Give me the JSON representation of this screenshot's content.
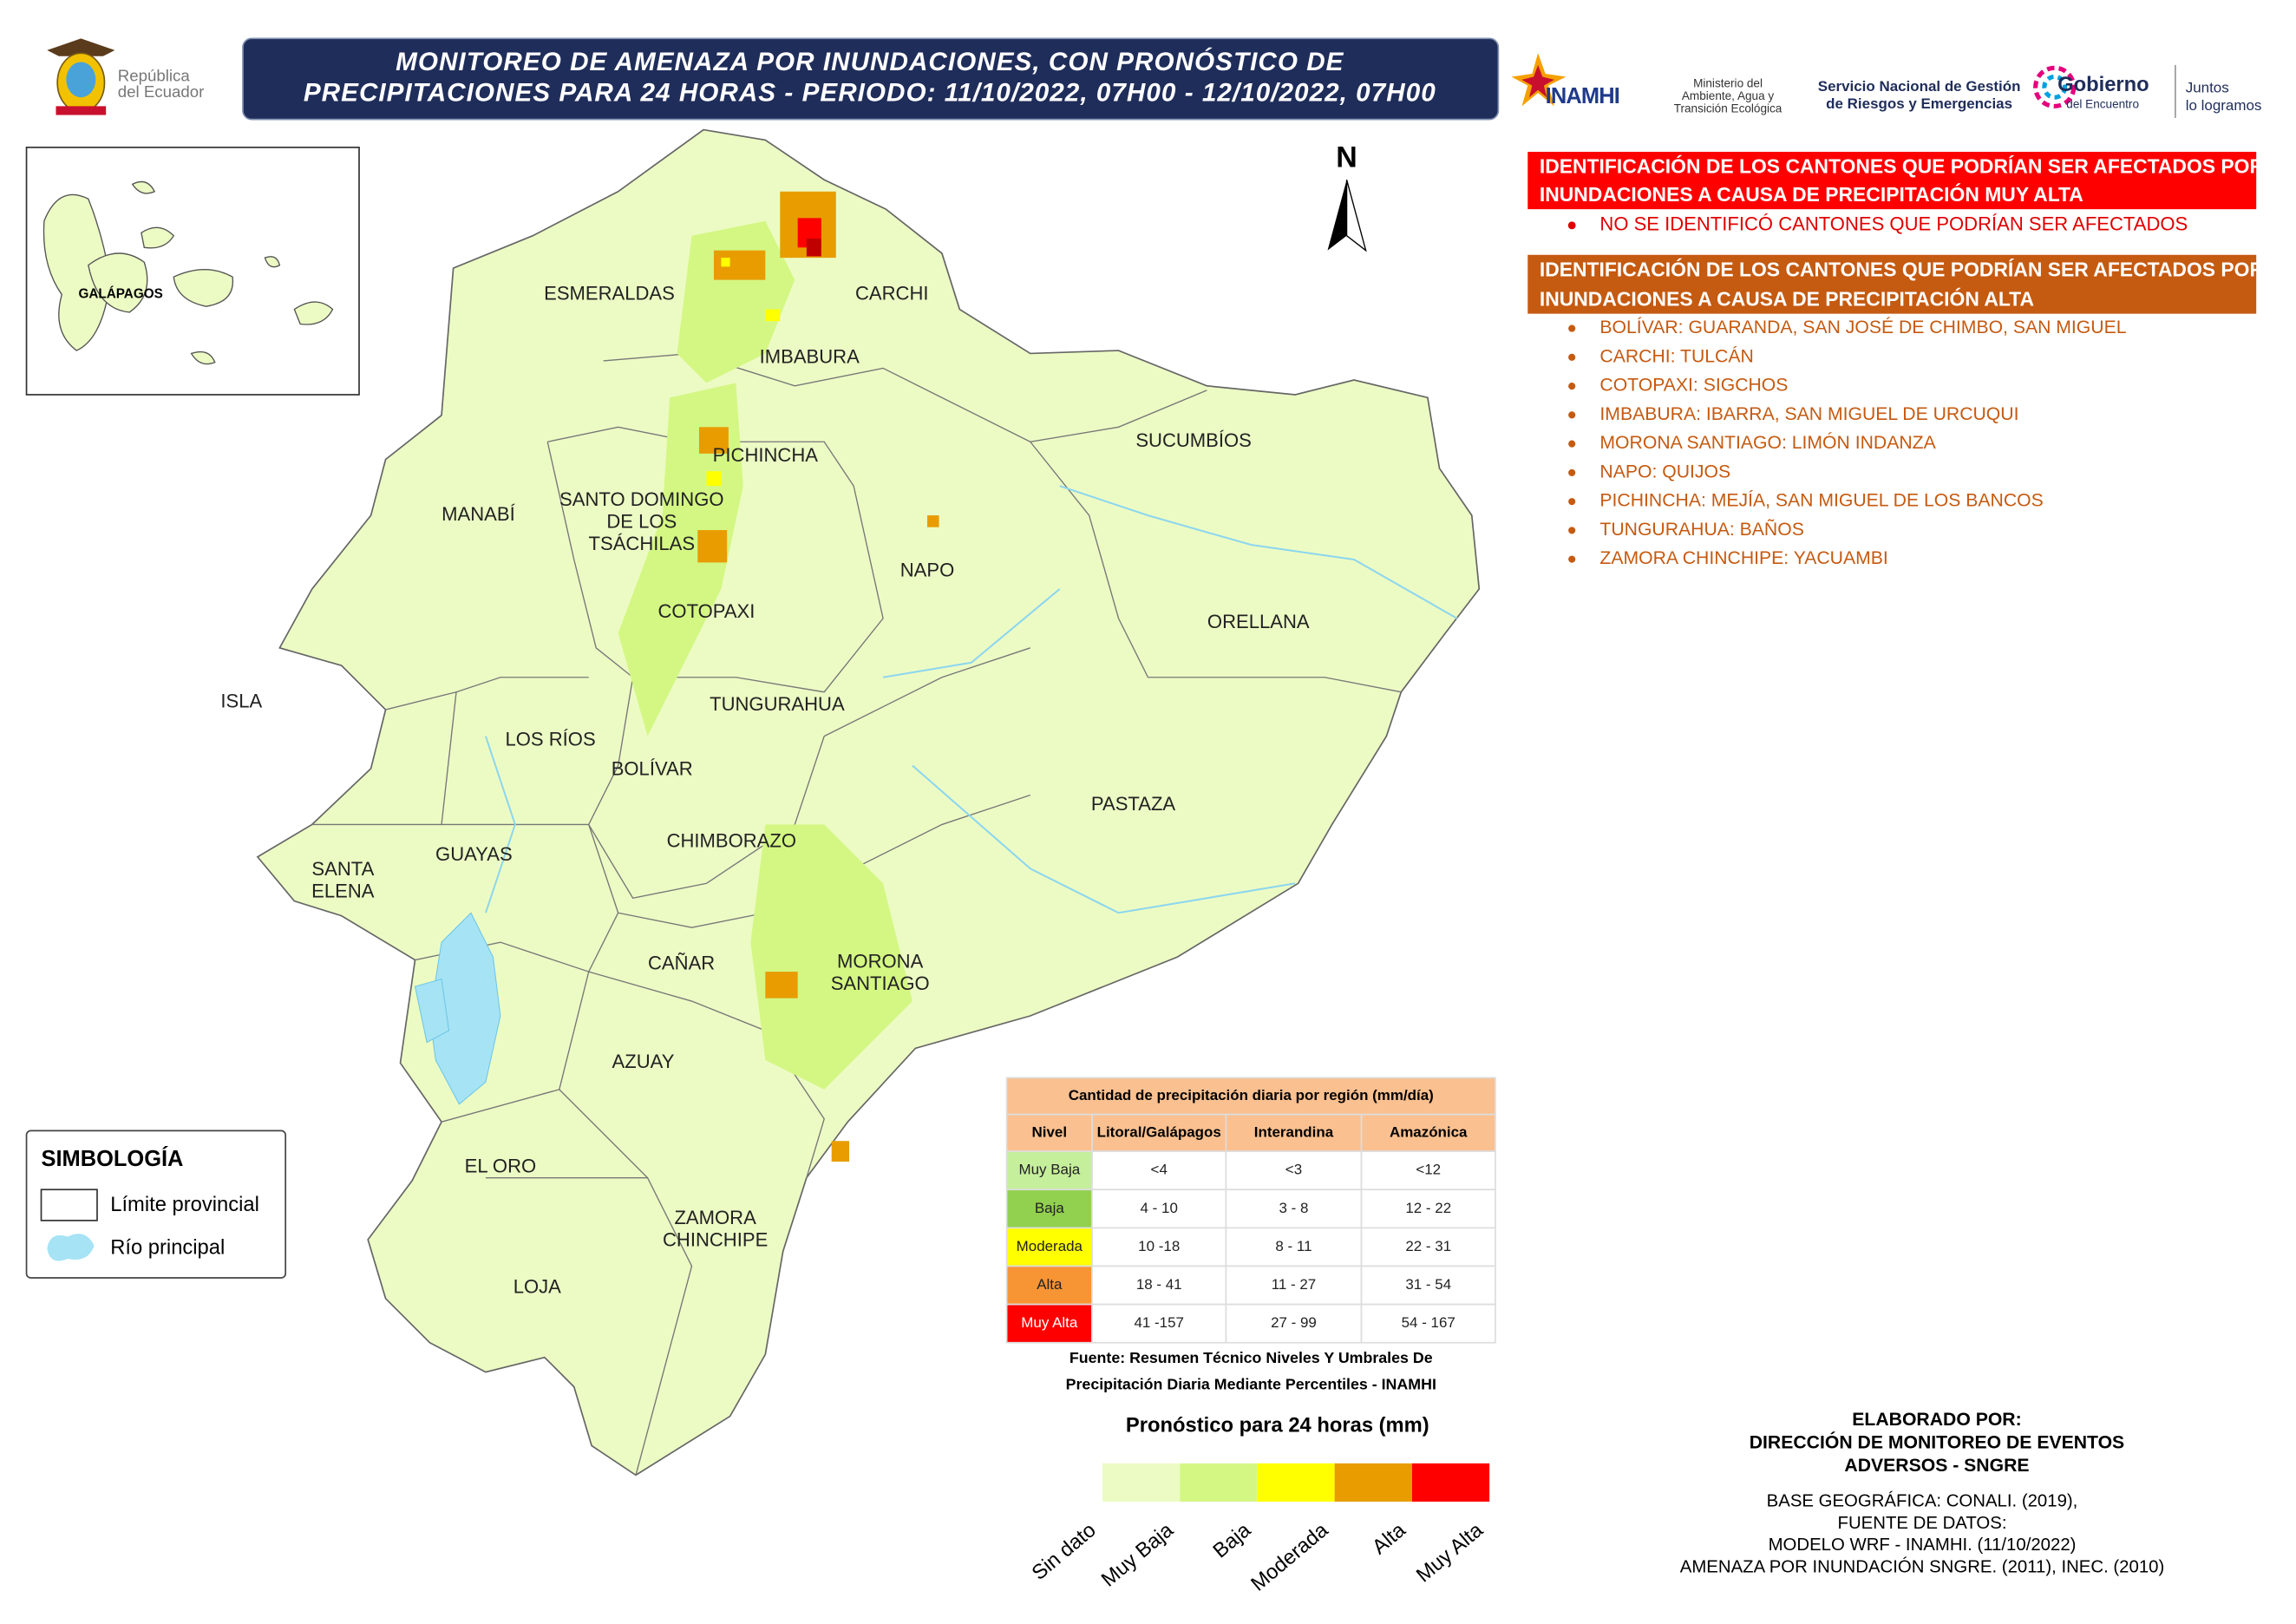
{
  "header": {
    "title": [
      "MONITOREO DE AMENAZA POR INUNDACIONES, CON PRONÓSTICO DE",
      "PRECIPITACIONES  PARA 24  HORAS - PERIODO: 11/10/2022, 07H00 - 12/10/2022, 07H00"
    ]
  },
  "logos": {
    "republic": [
      "República",
      "del Ecuador"
    ],
    "inamhi": "INAMHI",
    "ministry": [
      "Ministerio del",
      "Ambiente, Agua y",
      "Transición Ecológica"
    ],
    "sngre": [
      "Servicio Nacional de Gestión",
      "de Riesgos y Emergencias"
    ],
    "gobierno": [
      "Gobierno",
      "del Encuentro"
    ],
    "juntos": [
      "Juntos",
      "lo logramos"
    ]
  },
  "map": {
    "north": "N",
    "inset": "GALÁPAGOS",
    "provinces": [
      [
        "ESMERALDAS"
      ],
      [
        "CARCHI"
      ],
      [
        "IMBABURA"
      ],
      [
        "PICHINCHA"
      ],
      [
        "SUCUMBÍOS"
      ],
      [
        "MANABÍ"
      ],
      [
        "SANTO DOMINGO",
        "DE LOS",
        "TSÁCHILAS"
      ],
      [
        "NAPO"
      ],
      [
        "ORELLANA"
      ],
      [
        "COTOPAXI"
      ],
      [
        "ISLA"
      ],
      [
        "TUNGURAHUA"
      ],
      [
        "LOS RÍOS"
      ],
      [
        "BOLÍVAR"
      ],
      [
        "PASTAZA"
      ],
      [
        "CHIMBORAZO"
      ],
      [
        "GUAYAS"
      ],
      [
        "SANTA",
        "ELENA"
      ],
      [
        "CAÑAR"
      ],
      [
        "MORONA",
        "SANTIAGO"
      ],
      [
        "AZUAY"
      ],
      [
        "EL ORO"
      ],
      [
        "ZAMORA",
        "CHINCHIPE"
      ],
      [
        "LOJA"
      ]
    ]
  },
  "very_high": {
    "heading": [
      "IDENTIFICACIÓN DE LOS CANTONES QUE PODRÍAN SER AFECTADOS POR",
      "INUNDACIONES A CAUSA DE  PRECIPITACIÓN MUY ALTA"
    ],
    "items": [
      "NO SE IDENTIFICÓ CANTONES QUE PODRÍAN SER AFECTADOS"
    ]
  },
  "high": {
    "heading": [
      "IDENTIFICACIÓN DE LOS CANTONES QUE PODRÍAN SER AFECTADOS POR",
      "INUNDACIONES A CAUSA DE  PRECIPITACIÓN  ALTA"
    ],
    "items": [
      "BOLÍVAR: GUARANDA, SAN JOSÉ DE CHIMBO, SAN MIGUEL",
      "CARCHI: TULCÁN",
      "COTOPAXI: SIGCHOS",
      "IMBABURA: IBARRA, SAN MIGUEL DE URCUQUI",
      "MORONA SANTIAGO: LIMÓN INDANZA",
      "NAPO: QUIJOS",
      "PICHINCHA: MEJÍA, SAN MIGUEL DE LOS BANCOS",
      "TUNGURAHUA: BAÑOS",
      "ZAMORA CHINCHIPE: YACUAMBI"
    ]
  },
  "symbology": {
    "title": "SIMBOLOGÍA",
    "items": [
      "Límite provincial",
      "Río principal"
    ]
  },
  "table": {
    "title": "Cantidad de precipitación diaria por región (mm/día)",
    "columns": [
      "Nivel",
      "Litoral/Galápagos",
      "Interandina",
      "Amazónica"
    ],
    "rows": [
      [
        "Muy Baja",
        "<4",
        "<3",
        "<12"
      ],
      [
        "Baja",
        "4 - 10",
        "3 - 8",
        "12 - 22"
      ],
      [
        "Moderada",
        "10 -18",
        "8 - 11",
        "22 - 31"
      ],
      [
        "Alta",
        "18 - 41",
        "11 - 27",
        "31 - 54"
      ],
      [
        "Muy Alta",
        "41 -157",
        "27 - 99",
        "54 - 167"
      ]
    ],
    "level_colors": [
      "#c6ef9c",
      "#92d050",
      "#ffff00",
      "#f79433",
      "#ff0000"
    ],
    "source": [
      "Fuente: Resumen Técnico Niveles Y Umbrales De",
      "Precipitación Diaria Mediante Percentiles - INAMHI"
    ]
  },
  "legend": {
    "title": "Pronóstico para 24 horas (mm)",
    "labels": [
      "Sin dato",
      "Muy Baja",
      "Baja",
      "Moderada",
      "Alta",
      "Muy Alta"
    ],
    "colors": [
      "#ecfbc4",
      "#d4f784",
      "#ffff00",
      "#e89c00",
      "#ff0000"
    ]
  },
  "credits": {
    "lines": [
      "ELABORADO POR:",
      "DIRECCIÓN DE MONITOREO DE EVENTOS",
      "ADVERSOS - SNGRE"
    ],
    "sources": [
      "BASE GEOGRÁFICA: CONALI. (2019),",
      "FUENTE DE DATOS:",
      "MODELO WRF - INAMHI. (11/10/2022)",
      "AMENAZA POR INUNDACIÓN SNGRE. (2011), INEC. (2010)"
    ]
  }
}
